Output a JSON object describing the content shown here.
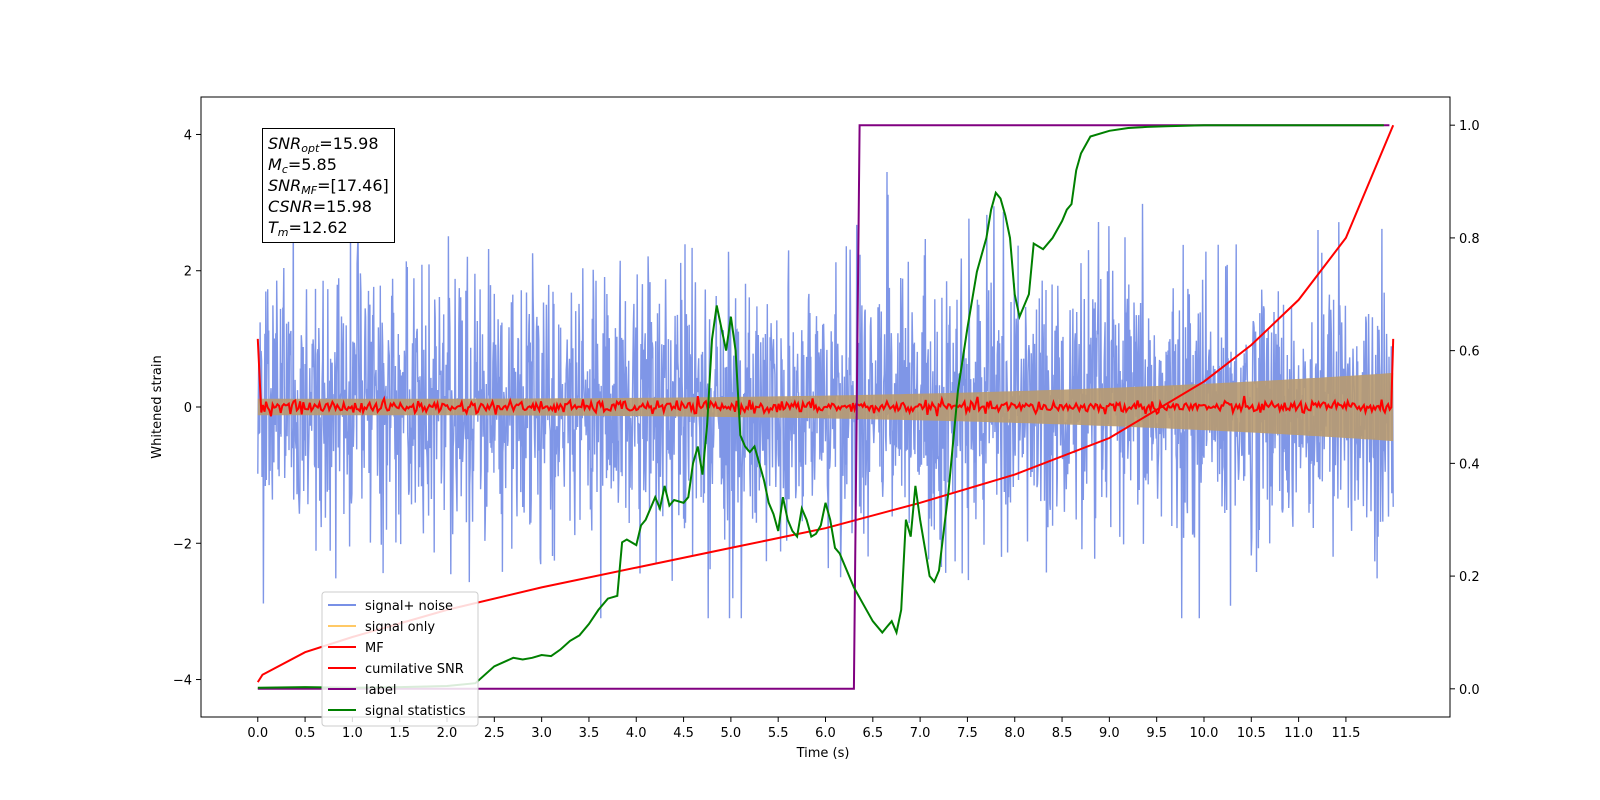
{
  "chart_data": {
    "type": "line",
    "xlabel": "Time (s)",
    "ylabel": "Whitened strain",
    "xlim": [
      -0.6,
      12.6
    ],
    "ylim": [
      -4.55,
      4.55
    ],
    "y2lim": [
      -0.05,
      1.05
    ],
    "x_ticks": [
      "0.0",
      "0.5",
      "1.0",
      "1.5",
      "2.0",
      "2.5",
      "3.0",
      "3.5",
      "4.0",
      "4.5",
      "5.0",
      "5.5",
      "6.0",
      "6.5",
      "7.0",
      "7.5",
      "8.0",
      "8.5",
      "9.0",
      "9.5",
      "10.0",
      "10.5",
      "11.0",
      "11.5"
    ],
    "y_ticks": [
      "4",
      "2",
      "0",
      "−2",
      "−4"
    ],
    "y2_ticks": [
      "1.0",
      "0.8",
      "0.6",
      "0.4",
      "0.2",
      "0.0"
    ],
    "legend_position": "lower-left",
    "annotation": {
      "snr_opt_sym": "SNR",
      "snr_opt_sub": "opt",
      "snr_opt_val": "=15.98",
      "mc_sym": "M",
      "mc_sub": "c",
      "mc_val": "=5.85",
      "snr_mf_sym": "SNR",
      "snr_mf_sub": "MF",
      "snr_mf_val": "=[17.46]",
      "csnr_sym": "CSNR",
      "csnr_val": "=15.98",
      "tm_sym": "T",
      "tm_sub": "m",
      "tm_val": "=12.62"
    },
    "series": [
      {
        "name": "signal+ noise",
        "color": "#7890e6",
        "axis": "left",
        "noise_sigma": 1.0,
        "x_range": [
          0.0,
          12.0
        ]
      },
      {
        "name": "signal only",
        "color": "#ffc966",
        "axis": "left",
        "amplitude_start": 0.12,
        "amplitude_end": 0.5,
        "x_range": [
          0.0,
          12.0
        ]
      },
      {
        "name": "MF",
        "color": "#ff0000",
        "axis": "left",
        "level": 0.0,
        "edge_value": 1.0,
        "noise_sigma": 0.045
      },
      {
        "name": "cumilative SNR",
        "color": "#ff0000",
        "axis": "right",
        "x": [
          0.0,
          0.05,
          0.5,
          1.0,
          2.0,
          3.0,
          4.0,
          5.0,
          6.0,
          7.0,
          8.0,
          9.0,
          10.0,
          10.5,
          11.0,
          11.5,
          12.0
        ],
        "values": [
          0.012,
          0.025,
          0.065,
          0.092,
          0.14,
          0.18,
          0.215,
          0.25,
          0.285,
          0.33,
          0.38,
          0.445,
          0.545,
          0.61,
          0.69,
          0.8,
          1.0
        ]
      },
      {
        "name": "label",
        "color": "#800080",
        "axis": "right",
        "x": [
          0.0,
          6.3,
          6.36,
          11.96
        ],
        "values": [
          0.0,
          0.0,
          1.0,
          1.0
        ]
      },
      {
        "name": "signal statistics",
        "color": "#008000",
        "axis": "right",
        "x": [
          0.0,
          0.5,
          1.0,
          1.5,
          2.0,
          2.3,
          2.5,
          2.7,
          2.8,
          2.9,
          3.0,
          3.1,
          3.2,
          3.3,
          3.4,
          3.5,
          3.6,
          3.7,
          3.8,
          3.85,
          3.9,
          4.0,
          4.05,
          4.1,
          4.2,
          4.25,
          4.3,
          4.35,
          4.4,
          4.5,
          4.55,
          4.6,
          4.65,
          4.7,
          4.75,
          4.8,
          4.85,
          4.9,
          4.95,
          5.0,
          5.05,
          5.1,
          5.15,
          5.2,
          5.25,
          5.3,
          5.35,
          5.4,
          5.45,
          5.5,
          5.55,
          5.6,
          5.65,
          5.7,
          5.75,
          5.8,
          5.85,
          5.9,
          5.95,
          6.0,
          6.05,
          6.1,
          6.15,
          6.2,
          6.3,
          6.4,
          6.5,
          6.6,
          6.65,
          6.7,
          6.75,
          6.8,
          6.85,
          6.9,
          6.95,
          7.0,
          7.05,
          7.1,
          7.15,
          7.2,
          7.3,
          7.4,
          7.5,
          7.6,
          7.7,
          7.75,
          7.8,
          7.85,
          7.9,
          7.95,
          8.0,
          8.05,
          8.1,
          8.15,
          8.2,
          8.3,
          8.4,
          8.5,
          8.55,
          8.6,
          8.65,
          8.7,
          8.8,
          9.0,
          9.2,
          9.4,
          9.6,
          9.8,
          10.0,
          10.5,
          11.0,
          11.5,
          11.9
        ],
        "values": [
          0.002,
          0.003,
          0.002,
          0.003,
          0.005,
          0.01,
          0.04,
          0.055,
          0.052,
          0.055,
          0.06,
          0.058,
          0.07,
          0.085,
          0.095,
          0.115,
          0.14,
          0.16,
          0.165,
          0.26,
          0.265,
          0.255,
          0.29,
          0.3,
          0.34,
          0.32,
          0.36,
          0.325,
          0.335,
          0.33,
          0.34,
          0.4,
          0.43,
          0.38,
          0.47,
          0.62,
          0.68,
          0.64,
          0.6,
          0.66,
          0.6,
          0.45,
          0.43,
          0.42,
          0.43,
          0.4,
          0.37,
          0.33,
          0.31,
          0.28,
          0.34,
          0.3,
          0.28,
          0.27,
          0.32,
          0.3,
          0.27,
          0.275,
          0.29,
          0.33,
          0.3,
          0.25,
          0.24,
          0.22,
          0.18,
          0.15,
          0.12,
          0.1,
          0.11,
          0.12,
          0.1,
          0.14,
          0.3,
          0.27,
          0.36,
          0.3,
          0.25,
          0.2,
          0.19,
          0.21,
          0.35,
          0.53,
          0.64,
          0.74,
          0.8,
          0.85,
          0.88,
          0.87,
          0.84,
          0.8,
          0.7,
          0.66,
          0.68,
          0.7,
          0.79,
          0.78,
          0.8,
          0.83,
          0.85,
          0.86,
          0.92,
          0.95,
          0.98,
          0.99,
          0.995,
          0.997,
          0.998,
          0.999,
          1.0,
          1.0,
          1.0,
          1.0,
          1.0
        ]
      }
    ]
  }
}
